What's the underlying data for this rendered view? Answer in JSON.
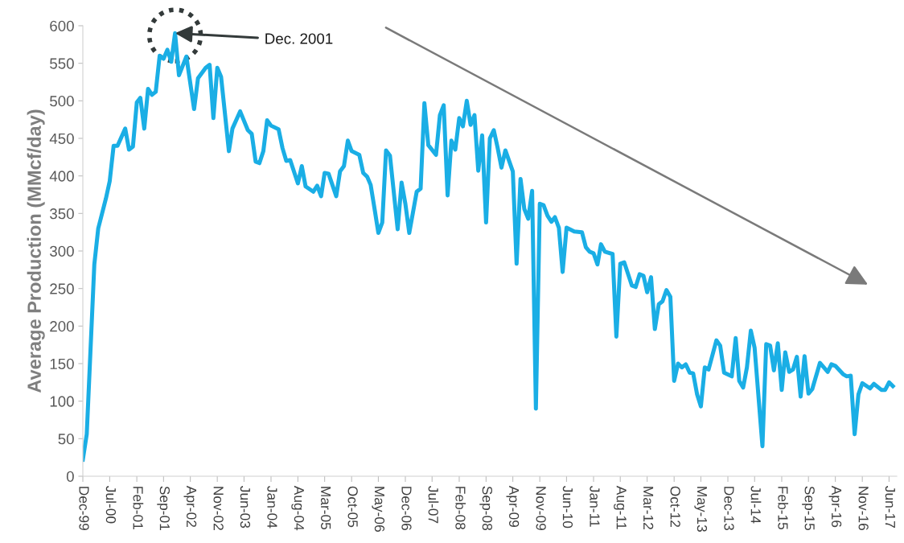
{
  "chart_data": {
    "type": "line",
    "ylabel": "Average Production (MMcf/day)",
    "annotations": [
      {
        "text": "Dec. 2001",
        "x": "2001-12",
        "y": 590
      }
    ],
    "x": [
      "1999-12",
      "2000-01",
      "2000-03",
      "2000-04",
      "2000-06",
      "2000-07",
      "2000-08",
      "2000-09",
      "2000-11",
      "2000-12",
      "2001-01",
      "2001-02",
      "2001-03",
      "2001-04",
      "2001-05",
      "2001-06",
      "2001-07",
      "2001-08",
      "2001-09",
      "2001-10",
      "2001-11",
      "2001-12",
      "2002-01",
      "2002-03",
      "2002-05",
      "2002-06",
      "2002-08",
      "2002-09",
      "2002-10",
      "2002-11",
      "2002-12",
      "2003-02",
      "2003-03",
      "2003-05",
      "2003-07",
      "2003-08",
      "2003-09",
      "2003-10",
      "2003-11",
      "2003-12",
      "2004-01",
      "2004-03",
      "2004-04",
      "2004-05",
      "2004-06",
      "2004-08",
      "2004-09",
      "2004-10",
      "2004-12",
      "2005-01",
      "2005-02",
      "2005-03",
      "2005-04",
      "2005-06",
      "2005-07",
      "2005-08",
      "2005-09",
      "2005-10",
      "2005-12",
      "2006-01",
      "2006-02",
      "2006-03",
      "2006-04",
      "2006-05",
      "2006-06",
      "2006-07",
      "2006-08",
      "2006-10",
      "2006-11",
      "2006-12",
      "2007-01",
      "2007-03",
      "2007-04",
      "2007-05",
      "2007-06",
      "2007-08",
      "2007-09",
      "2007-10",
      "2007-11",
      "2007-12",
      "2008-01",
      "2008-02",
      "2008-03",
      "2008-04",
      "2008-05",
      "2008-06",
      "2008-07",
      "2008-08",
      "2008-09",
      "2008-10",
      "2008-11",
      "2008-12",
      "2009-01",
      "2009-02",
      "2009-04",
      "2009-05",
      "2009-06",
      "2009-07",
      "2009-08",
      "2009-09",
      "2009-10",
      "2009-11",
      "2009-12",
      "2010-01",
      "2010-02",
      "2010-03",
      "2010-04",
      "2010-05",
      "2010-06",
      "2010-08",
      "2010-10",
      "2010-11",
      "2010-12",
      "2011-01",
      "2011-02",
      "2011-03",
      "2011-04",
      "2011-06",
      "2011-07",
      "2011-08",
      "2011-09",
      "2011-11",
      "2011-12",
      "2012-01",
      "2012-02",
      "2012-03",
      "2012-04",
      "2012-05",
      "2012-06",
      "2012-07",
      "2012-08",
      "2012-09",
      "2012-10",
      "2012-11",
      "2012-12",
      "2013-01",
      "2013-02",
      "2013-03",
      "2013-04",
      "2013-05",
      "2013-06",
      "2013-07",
      "2013-09",
      "2013-10",
      "2013-11",
      "2014-01",
      "2014-02",
      "2014-03",
      "2014-04",
      "2014-05",
      "2014-06",
      "2014-07",
      "2014-09",
      "2014-10",
      "2014-11",
      "2014-12",
      "2015-01",
      "2015-02",
      "2015-03",
      "2015-04",
      "2015-05",
      "2015-06",
      "2015-07",
      "2015-08",
      "2015-09",
      "2015-10",
      "2015-12",
      "2016-02",
      "2016-03",
      "2016-04",
      "2016-06",
      "2016-07",
      "2016-08",
      "2016-09",
      "2016-10",
      "2016-11",
      "2017-01",
      "2017-02",
      "2017-04",
      "2017-05",
      "2017-06",
      "2017-07"
    ],
    "series": [
      {
        "color": "#1aaee5",
        "values": [
          22,
          56,
          282,
          330,
          370,
          393,
          440,
          440,
          463,
          435,
          439,
          498,
          504,
          463,
          516,
          508,
          512,
          560,
          556,
          568,
          552,
          590,
          534,
          559,
          489,
          530,
          544,
          548,
          477,
          544,
          532,
          433,
          463,
          486,
          461,
          456,
          419,
          417,
          433,
          474,
          467,
          462,
          437,
          420,
          421,
          390,
          413,
          386,
          379,
          387,
          373,
          404,
          403,
          373,
          406,
          413,
          447,
          433,
          428,
          404,
          399,
          388,
          356,
          324,
          338,
          434,
          427,
          329,
          391,
          363,
          324,
          379,
          383,
          497,
          441,
          428,
          481,
          494,
          374,
          447,
          435,
          477,
          466,
          500,
          468,
          481,
          407,
          454,
          338,
          450,
          461,
          438,
          411,
          434,
          406,
          283,
          396,
          356,
          343,
          380,
          90,
          363,
          361,
          347,
          339,
          345,
          331,
          272,
          331,
          326,
          325,
          305,
          299,
          297,
          282,
          309,
          299,
          296,
          186,
          283,
          285,
          254,
          252,
          269,
          267,
          245,
          265,
          196,
          229,
          233,
          248,
          239,
          127,
          150,
          145,
          149,
          138,
          137,
          109,
          93,
          145,
          142,
          181,
          174,
          138,
          133,
          184,
          127,
          118,
          145,
          194,
          171,
          40,
          176,
          174,
          141,
          177,
          115,
          165,
          139,
          142,
          159,
          106,
          160,
          110,
          116,
          151,
          139,
          149,
          147,
          136,
          133,
          134,
          56,
          109,
          124,
          117,
          123,
          115,
          115,
          125,
          120
        ]
      }
    ],
    "xlim": [
      "1999-12",
      "2017-08"
    ],
    "xticks": [
      {
        "value": "1999-12",
        "label": "Dec-99"
      },
      {
        "value": "2000-07",
        "label": "Jul-00"
      },
      {
        "value": "2001-02",
        "label": "Feb-01"
      },
      {
        "value": "2001-09",
        "label": "Sep-01"
      },
      {
        "value": "2002-04",
        "label": "Apr-02"
      },
      {
        "value": "2002-11",
        "label": "Nov-02"
      },
      {
        "value": "2003-06",
        "label": "Jun-03"
      },
      {
        "value": "2004-01",
        "label": "Jan-04"
      },
      {
        "value": "2004-08",
        "label": "Aug-04"
      },
      {
        "value": "2005-03",
        "label": "Mar-05"
      },
      {
        "value": "2005-10",
        "label": "Oct-05"
      },
      {
        "value": "2006-05",
        "label": "May-06"
      },
      {
        "value": "2006-12",
        "label": "Dec-06"
      },
      {
        "value": "2007-07",
        "label": "Jul-07"
      },
      {
        "value": "2008-02",
        "label": "Feb-08"
      },
      {
        "value": "2008-09",
        "label": "Sep-08"
      },
      {
        "value": "2009-04",
        "label": "Apr-09"
      },
      {
        "value": "2009-11",
        "label": "Nov-09"
      },
      {
        "value": "2010-06",
        "label": "Jun-10"
      },
      {
        "value": "2011-01",
        "label": "Jan-11"
      },
      {
        "value": "2011-08",
        "label": "Aug-11"
      },
      {
        "value": "2012-03",
        "label": "Mar-12"
      },
      {
        "value": "2012-10",
        "label": "Oct-12"
      },
      {
        "value": "2013-05",
        "label": "May-13"
      },
      {
        "value": "2013-12",
        "label": "Dec-13"
      },
      {
        "value": "2014-07",
        "label": "Jul-14"
      },
      {
        "value": "2015-02",
        "label": "Feb-15"
      },
      {
        "value": "2015-09",
        "label": "Sep-15"
      },
      {
        "value": "2016-04",
        "label": "Apr-16"
      },
      {
        "value": "2016-11",
        "label": "Nov-16"
      },
      {
        "value": "2017-06",
        "label": "Jun-17"
      }
    ],
    "ylim": [
      0,
      600
    ],
    "yticks": [
      0,
      50,
      100,
      150,
      200,
      250,
      300,
      350,
      400,
      450,
      500,
      550,
      600
    ],
    "grid": false,
    "legend": false,
    "marker": "none",
    "line_style": "solid"
  }
}
